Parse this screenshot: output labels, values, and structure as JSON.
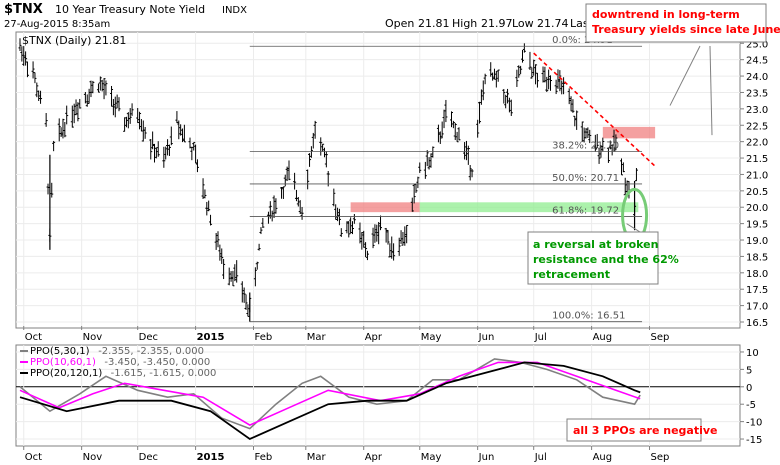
{
  "header": {
    "symbol": "$TNX",
    "name": "10 Year Treasury Note Yield",
    "exchange": "INDX",
    "datetime": "27-Aug-2015 8:35am",
    "open_label": "Open",
    "open": "21.81",
    "high_label": "High",
    "high": "21.97",
    "low_label": "Low",
    "low": "21.74",
    "last_label": "Last"
  },
  "annotations": {
    "downtrend": [
      "downtrend in long-term",
      "Treasury yields since late June"
    ],
    "reversal": [
      "a reversal at broken",
      "resistance and the 62%",
      "retracement"
    ],
    "ppo_note": "all 3 PPOs are negative"
  },
  "colors": {
    "price": "#000000",
    "trendline": "#ff0000",
    "resistance_zone": "#f08080",
    "support_zone": "#90ee90",
    "annotation_text": "#ff0000",
    "reversal_text": "#009900",
    "ppo1": "#808080",
    "ppo2": "#ff00ff",
    "ppo3": "#000000"
  },
  "chart_data": [
    {
      "type": "ohlc",
      "legend": "$TNX (Daily) 21.81",
      "ylim": [
        16.5,
        25.1
      ],
      "y_ticks": [
        "16.5",
        "17.0",
        "17.5",
        "18.0",
        "18.5",
        "19.0",
        "19.5",
        "20.0",
        "20.5",
        "21.0",
        "21.5",
        "22.0",
        "22.5",
        "23.0",
        "23.5",
        "24.0",
        "24.5",
        "25.0"
      ],
      "months": [
        "Oct",
        "Nov",
        "Dec",
        "2015",
        "Feb",
        "Mar",
        "Apr",
        "May",
        "Jun",
        "Jul",
        "Aug",
        "Sep"
      ],
      "x_start_date": "2014-09-29",
      "fibonacci": [
        {
          "label": "0.0%: 24.91",
          "value": 24.91
        },
        {
          "label": "38.2%: 21.70",
          "value": 21.7
        },
        {
          "label": "50.0%: 20.71",
          "value": 20.71
        },
        {
          "label": "61.8%: 19.72",
          "value": 19.72
        },
        {
          "label": "100.0%: 16.51",
          "value": 16.51
        }
      ],
      "resistance_zone": {
        "start": "2015-03-25",
        "end": "2015-05-01",
        "low": 19.85,
        "high": 20.15
      },
      "support_zone": {
        "start": "2015-05-01",
        "end": "2015-08-26",
        "low": 19.85,
        "high": 20.15
      },
      "recent_zone": {
        "start": "2015-08-07",
        "end": "2015-09-04",
        "low": 22.1,
        "high": 22.45
      },
      "trendline": [
        {
          "date": "2015-07-01",
          "value": 24.7
        },
        {
          "date": "2015-09-04",
          "value": 21.25
        }
      ],
      "series": [
        {
          "date": "2014-09-29",
          "close": 24.9
        },
        {
          "date": "2014-10-06",
          "close": 24.1
        },
        {
          "date": "2014-10-13",
          "close": 22.5
        },
        {
          "date": "2014-10-15",
          "close": 19.0
        },
        {
          "date": "2014-10-17",
          "close": 21.8
        },
        {
          "date": "2014-10-24",
          "close": 22.7
        },
        {
          "date": "2014-11-03",
          "close": 23.4
        },
        {
          "date": "2014-11-10",
          "close": 23.8
        },
        {
          "date": "2014-11-17",
          "close": 23.3
        },
        {
          "date": "2014-11-24",
          "close": 22.6
        },
        {
          "date": "2014-12-01",
          "close": 22.9
        },
        {
          "date": "2014-12-08",
          "close": 21.9
        },
        {
          "date": "2014-12-15",
          "close": 21.4
        },
        {
          "date": "2014-12-22",
          "close": 22.6
        },
        {
          "date": "2014-12-31",
          "close": 21.7
        },
        {
          "date": "2015-01-09",
          "close": 19.7
        },
        {
          "date": "2015-01-16",
          "close": 18.2
        },
        {
          "date": "2015-01-23",
          "close": 17.9
        },
        {
          "date": "2015-01-30",
          "close": 16.8
        },
        {
          "date": "2015-02-06",
          "close": 19.5
        },
        {
          "date": "2015-02-13",
          "close": 20.1
        },
        {
          "date": "2015-02-20",
          "close": 21.0
        },
        {
          "date": "2015-02-27",
          "close": 20.0
        },
        {
          "date": "2015-03-06",
          "close": 22.4
        },
        {
          "date": "2015-03-13",
          "close": 21.1
        },
        {
          "date": "2015-03-20",
          "close": 19.3
        },
        {
          "date": "2015-03-27",
          "close": 19.5
        },
        {
          "date": "2015-04-03",
          "close": 18.6
        },
        {
          "date": "2015-04-10",
          "close": 19.5
        },
        {
          "date": "2015-04-17",
          "close": 18.7
        },
        {
          "date": "2015-04-24",
          "close": 19.2
        },
        {
          "date": "2015-05-01",
          "close": 21.1
        },
        {
          "date": "2015-05-08",
          "close": 21.5
        },
        {
          "date": "2015-05-15",
          "close": 22.8
        },
        {
          "date": "2015-05-22",
          "close": 22.2
        },
        {
          "date": "2015-05-29",
          "close": 21.2
        },
        {
          "date": "2015-06-05",
          "close": 24.0
        },
        {
          "date": "2015-06-12",
          "close": 23.9
        },
        {
          "date": "2015-06-19",
          "close": 23.0
        },
        {
          "date": "2015-06-26",
          "close": 24.7
        },
        {
          "date": "2015-07-03",
          "close": 23.9
        },
        {
          "date": "2015-07-10",
          "close": 24.0
        },
        {
          "date": "2015-07-17",
          "close": 23.6
        },
        {
          "date": "2015-07-24",
          "close": 22.6
        },
        {
          "date": "2015-07-31",
          "close": 22.0
        },
        {
          "date": "2015-08-07",
          "close": 21.8
        },
        {
          "date": "2015-08-14",
          "close": 21.9
        },
        {
          "date": "2015-08-21",
          "close": 20.5
        },
        {
          "date": "2015-08-24",
          "close": 20.0
        },
        {
          "date": "2015-08-26",
          "close": 21.8
        }
      ]
    },
    {
      "type": "line",
      "ylim": [
        -17,
        12
      ],
      "y_ticks": [
        "10",
        "5",
        "0",
        "-5",
        "-10",
        "-15"
      ],
      "series": [
        {
          "name": "PPO(5,30,1)",
          "readout": "-2.355, -2.355, 0.000",
          "points": [
            {
              "date": "2014-09-29",
              "value": 0
            },
            {
              "date": "2014-10-15",
              "value": -7
            },
            {
              "date": "2014-10-31",
              "value": -2
            },
            {
              "date": "2014-11-14",
              "value": 3
            },
            {
              "date": "2014-12-01",
              "value": -1
            },
            {
              "date": "2014-12-17",
              "value": -3
            },
            {
              "date": "2014-12-31",
              "value": -2
            },
            {
              "date": "2015-01-15",
              "value": -9
            },
            {
              "date": "2015-01-30",
              "value": -12
            },
            {
              "date": "2015-02-13",
              "value": -5
            },
            {
              "date": "2015-02-27",
              "value": 1
            },
            {
              "date": "2015-03-09",
              "value": 3
            },
            {
              "date": "2015-03-24",
              "value": -3
            },
            {
              "date": "2015-04-08",
              "value": -5
            },
            {
              "date": "2015-04-24",
              "value": -4
            },
            {
              "date": "2015-05-08",
              "value": 2
            },
            {
              "date": "2015-05-22",
              "value": 2
            },
            {
              "date": "2015-06-10",
              "value": 8
            },
            {
              "date": "2015-06-24",
              "value": 7
            },
            {
              "date": "2015-07-08",
              "value": 5
            },
            {
              "date": "2015-07-24",
              "value": 2
            },
            {
              "date": "2015-08-07",
              "value": -3
            },
            {
              "date": "2015-08-24",
              "value": -5
            },
            {
              "date": "2015-08-27",
              "value": -2.355
            }
          ]
        },
        {
          "name": "PPO(10,60,1)",
          "readout": "-3.450, -3.450, 0.000",
          "points": [
            {
              "date": "2014-09-29",
              "value": -1
            },
            {
              "date": "2014-10-20",
              "value": -6
            },
            {
              "date": "2014-11-07",
              "value": -2
            },
            {
              "date": "2014-11-24",
              "value": 1
            },
            {
              "date": "2014-12-15",
              "value": -1
            },
            {
              "date": "2015-01-05",
              "value": -3
            },
            {
              "date": "2015-01-30",
              "value": -11
            },
            {
              "date": "2015-02-20",
              "value": -6
            },
            {
              "date": "2015-03-13",
              "value": -1
            },
            {
              "date": "2015-04-10",
              "value": -4
            },
            {
              "date": "2015-05-01",
              "value": -2
            },
            {
              "date": "2015-05-22",
              "value": 3
            },
            {
              "date": "2015-06-12",
              "value": 7
            },
            {
              "date": "2015-07-03",
              "value": 7
            },
            {
              "date": "2015-07-24",
              "value": 3
            },
            {
              "date": "2015-08-14",
              "value": -1
            },
            {
              "date": "2015-08-27",
              "value": -3.45
            }
          ]
        },
        {
          "name": "PPO(20,120,1)",
          "readout": "-1.615, -1.615, 0.000",
          "points": [
            {
              "date": "2014-09-29",
              "value": -3
            },
            {
              "date": "2014-10-24",
              "value": -7
            },
            {
              "date": "2014-11-21",
              "value": -4
            },
            {
              "date": "2014-12-19",
              "value": -4
            },
            {
              "date": "2015-01-09",
              "value": -7
            },
            {
              "date": "2015-01-30",
              "value": -15
            },
            {
              "date": "2015-02-20",
              "value": -10
            },
            {
              "date": "2015-03-13",
              "value": -5
            },
            {
              "date": "2015-04-03",
              "value": -4
            },
            {
              "date": "2015-04-24",
              "value": -4
            },
            {
              "date": "2015-05-15",
              "value": 1
            },
            {
              "date": "2015-06-05",
              "value": 4
            },
            {
              "date": "2015-06-26",
              "value": 7
            },
            {
              "date": "2015-07-17",
              "value": 6
            },
            {
              "date": "2015-08-07",
              "value": 3
            },
            {
              "date": "2015-08-24",
              "value": -1
            },
            {
              "date": "2015-08-27",
              "value": -1.615
            }
          ]
        }
      ]
    }
  ]
}
